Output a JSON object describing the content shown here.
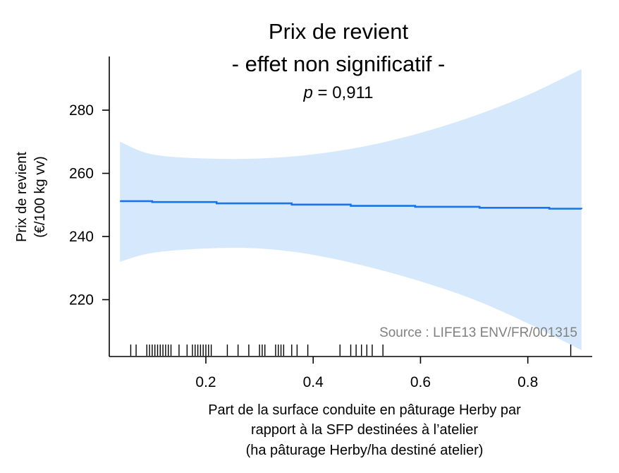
{
  "chart_data": {
    "type": "line",
    "title_lines": [
      "Prix de revient",
      "- effet non significatif -"
    ],
    "pvalue": {
      "symbol": "p",
      "text": " = 0,911"
    },
    "ylabel_lines": [
      "Prix de revient",
      "(€/100 kg vv)"
    ],
    "xlabel_lines": [
      "Part de la surface conduite en pâturage Herby par",
      "rapport à la SFP destinées à l’atelier",
      "(ha pâturage Herby/ha destiné atelier)"
    ],
    "annotation": "Source : LIFE13 ENV/FR/001315",
    "xlim": [
      0.02,
      0.92
    ],
    "ylim": [
      202,
      297
    ],
    "x_ticks": [
      0.2,
      0.4,
      0.6,
      0.8
    ],
    "x_tick_labels": [
      "0.2",
      "0.4",
      "0.6",
      "0.8"
    ],
    "y_ticks": [
      220,
      240,
      260,
      280
    ],
    "y_tick_labels": [
      "220",
      "240",
      "260",
      "280"
    ],
    "series": [
      {
        "x": [
          0.04,
          0.1,
          0.22,
          0.36,
          0.47,
          0.59,
          0.71,
          0.84,
          0.9
        ],
        "y": [
          251.2,
          250.9,
          250.5,
          250.1,
          249.7,
          249.4,
          249.1,
          248.8,
          248.7
        ],
        "color": "#1a73e8"
      }
    ],
    "confidence_band": {
      "x": [
        0.04,
        0.1,
        0.2,
        0.3,
        0.4,
        0.5,
        0.6,
        0.7,
        0.8,
        0.9
      ],
      "upper": [
        270,
        266,
        264.7,
        264.7,
        266,
        268.7,
        272.8,
        278.2,
        284.8,
        293
      ],
      "lower": [
        232,
        234.8,
        236.2,
        236.2,
        234.2,
        230.5,
        225.8,
        220,
        212.5,
        204
      ],
      "color": "#d6e9fc"
    },
    "rug_x": [
      0.06,
      0.07,
      0.09,
      0.095,
      0.1,
      0.105,
      0.11,
      0.115,
      0.12,
      0.125,
      0.13,
      0.135,
      0.15,
      0.165,
      0.175,
      0.18,
      0.185,
      0.19,
      0.195,
      0.2,
      0.205,
      0.21,
      0.24,
      0.26,
      0.28,
      0.3,
      0.305,
      0.31,
      0.33,
      0.335,
      0.34,
      0.345,
      0.36,
      0.37,
      0.39,
      0.45,
      0.47,
      0.48,
      0.49,
      0.5,
      0.51,
      0.53,
      0.88
    ]
  }
}
